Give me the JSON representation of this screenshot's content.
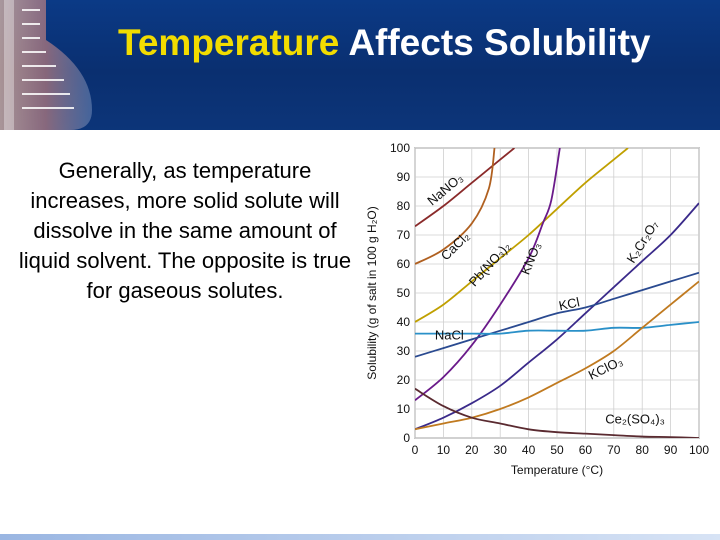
{
  "slide": {
    "title_accent": "Temperature",
    "title_rest": "Affects Solubility",
    "body": "Generally, as temperature increases, more solid solute will dissolve in the same amount of liquid solvent.  The opposite is true for gaseous solutes."
  },
  "colors": {
    "header_bg": "#0b3a86",
    "title_accent": "#f2dc00",
    "title_text": "#ffffff"
  },
  "chart_data": {
    "type": "line",
    "xlabel": "Temperature (°C)",
    "ylabel": "Solubility (g of salt in 100 g H₂O)",
    "xlim": [
      0,
      100
    ],
    "ylim": [
      0,
      100
    ],
    "xticks": [
      "0",
      "10",
      "20",
      "30",
      "40",
      "50",
      "60",
      "70",
      "80",
      "90",
      "100"
    ],
    "yticks": [
      "0",
      "10",
      "20",
      "30",
      "40",
      "50",
      "60",
      "70",
      "80",
      "90",
      "100"
    ],
    "grid": true,
    "series": [
      {
        "name": "NaNO₃",
        "color": "#8a2a2a",
        "points": [
          [
            0,
            73
          ],
          [
            10,
            80
          ],
          [
            20,
            88
          ],
          [
            30,
            96
          ],
          [
            35,
            100
          ]
        ]
      },
      {
        "name": "CaCl₂",
        "color": "#b06020",
        "points": [
          [
            0,
            60
          ],
          [
            10,
            65
          ],
          [
            20,
            74
          ],
          [
            26,
            86
          ],
          [
            28,
            100
          ]
        ]
      },
      {
        "name": "Pb(NO₃)₂",
        "color": "#c0a000",
        "points": [
          [
            0,
            40
          ],
          [
            10,
            46
          ],
          [
            20,
            54
          ],
          [
            30,
            62
          ],
          [
            40,
            70
          ],
          [
            50,
            79
          ],
          [
            60,
            88
          ],
          [
            70,
            96
          ],
          [
            75,
            100
          ]
        ]
      },
      {
        "name": "KNO₃",
        "color": "#6a1a8a",
        "points": [
          [
            0,
            13
          ],
          [
            10,
            21
          ],
          [
            20,
            32
          ],
          [
            30,
            46
          ],
          [
            40,
            62
          ],
          [
            45,
            74
          ],
          [
            48,
            82
          ],
          [
            51,
            100
          ]
        ]
      },
      {
        "name": "K₂Cr₂O₇",
        "color": "#3a2a8a",
        "points": [
          [
            0,
            3
          ],
          [
            10,
            7
          ],
          [
            20,
            12
          ],
          [
            30,
            18
          ],
          [
            40,
            26
          ],
          [
            50,
            34
          ],
          [
            60,
            43
          ],
          [
            70,
            52
          ],
          [
            80,
            61
          ],
          [
            90,
            70
          ],
          [
            100,
            81
          ]
        ]
      },
      {
        "name": "KCl",
        "color": "#2a4a90",
        "points": [
          [
            0,
            28
          ],
          [
            10,
            31
          ],
          [
            20,
            34
          ],
          [
            30,
            37
          ],
          [
            40,
            40
          ],
          [
            50,
            43
          ],
          [
            60,
            45
          ],
          [
            70,
            48
          ],
          [
            80,
            51
          ],
          [
            90,
            54
          ],
          [
            100,
            57
          ]
        ]
      },
      {
        "name": "NaCl",
        "color": "#2a90c8",
        "points": [
          [
            0,
            36
          ],
          [
            10,
            36
          ],
          [
            20,
            36
          ],
          [
            30,
            36
          ],
          [
            40,
            37
          ],
          [
            50,
            37
          ],
          [
            60,
            37
          ],
          [
            70,
            38
          ],
          [
            80,
            38
          ],
          [
            90,
            39
          ],
          [
            100,
            40
          ]
        ]
      },
      {
        "name": "KClO₃",
        "color": "#c07a20",
        "points": [
          [
            0,
            3
          ],
          [
            10,
            5
          ],
          [
            20,
            7
          ],
          [
            30,
            10
          ],
          [
            40,
            14
          ],
          [
            50,
            19
          ],
          [
            60,
            24
          ],
          [
            70,
            30
          ],
          [
            80,
            38
          ],
          [
            90,
            46
          ],
          [
            100,
            54
          ]
        ]
      },
      {
        "name": "Ce₂(SO₄)₃",
        "color": "#5a2a30",
        "points": [
          [
            0,
            17
          ],
          [
            10,
            11
          ],
          [
            20,
            7
          ],
          [
            30,
            5
          ],
          [
            40,
            3
          ],
          [
            50,
            2
          ],
          [
            60,
            1.5
          ],
          [
            70,
            1
          ],
          [
            80,
            0.5
          ],
          [
            90,
            0.3
          ],
          [
            100,
            0
          ]
        ]
      }
    ],
    "labels": [
      {
        "text": "NaNO₃",
        "x": 6,
        "y": 80,
        "angle": -40
      },
      {
        "text": "CaCl₂",
        "x": 11,
        "y": 61,
        "angle": -45
      },
      {
        "text": "Pb(NO₃)₂",
        "x": 21,
        "y": 52,
        "angle": -48
      },
      {
        "text": "KNO₃",
        "x": 40,
        "y": 56,
        "angle": -68
      },
      {
        "text": "K₂Cr₂O₇",
        "x": 77,
        "y": 60,
        "angle": -58
      },
      {
        "text": "KCl",
        "x": 51,
        "y": 44,
        "angle": -12
      },
      {
        "text": "NaCl",
        "x": 7,
        "y": 34,
        "angle": 0
      },
      {
        "text": "KClO₃",
        "x": 62,
        "y": 20,
        "angle": -26
      },
      {
        "text": "Ce₂(SO₄)₃",
        "x": 67,
        "y": 5,
        "angle": 0
      }
    ]
  }
}
